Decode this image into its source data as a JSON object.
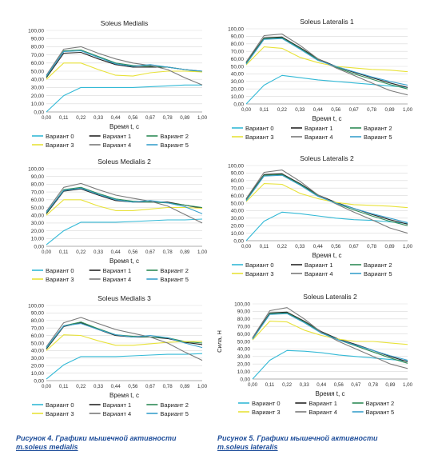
{
  "captions": {
    "left_line1": "Рисунок 4. Графики мышечной активности",
    "left_line2": "m.soleus medialis",
    "right_line1": "Рисунок 5. Графики мышечной активности",
    "right_line2": "m.soleus lateralis"
  },
  "colors": {
    "Вариант 0": "#33b9d6",
    "Вариант 1": "#262626",
    "Вариант 2": "#2e8b57",
    "Вариант 3": "#e8e23a",
    "Вариант 4": "#7a7a7a",
    "Вариант 5": "#3aa0cc"
  },
  "chart_data": [
    {
      "type": "line",
      "title": "Soleus Medialis",
      "xlabel": "Время t, с",
      "ylabel": "",
      "ylim": [
        0,
        100
      ],
      "yticks": [
        "0,00",
        "10,00",
        "20,00",
        "30,00",
        "40,00",
        "50,00",
        "60,00",
        "70,00",
        "80,00",
        "90,00",
        "100,00"
      ],
      "x": [
        "0,00",
        "0,11",
        "0,22",
        "0,33",
        "0,44",
        "0,56",
        "0,67",
        "0,78",
        "0,89",
        "1,00"
      ],
      "legend_position": "bottom",
      "legend_names": [
        "Вариант 0",
        "Вариант 1",
        "Вариант 2",
        "Вариант 3",
        "Вариант 4",
        "Вариант 5"
      ],
      "series": [
        {
          "name": "Вариант 0",
          "values": [
            0,
            20,
            30,
            30,
            30,
            30,
            31,
            32,
            33,
            33
          ]
        },
        {
          "name": "Вариант 1",
          "values": [
            42,
            72,
            73,
            65,
            58,
            55,
            55,
            55,
            52,
            50
          ]
        },
        {
          "name": "Вариант 2",
          "values": [
            43,
            75,
            76,
            68,
            60,
            57,
            56,
            55,
            52,
            49
          ]
        },
        {
          "name": "Вариант 3",
          "values": [
            40,
            60,
            60,
            52,
            45,
            44,
            48,
            50,
            50,
            49
          ]
        },
        {
          "name": "Вариант 4",
          "values": [
            45,
            77,
            80,
            72,
            65,
            60,
            57,
            52,
            42,
            33
          ]
        },
        {
          "name": "Вариант 5",
          "values": [
            44,
            74,
            75,
            67,
            59,
            56,
            58,
            55,
            52,
            50
          ]
        }
      ]
    },
    {
      "type": "line",
      "title": "Soleus Lateralis 1",
      "xlabel": "Время t, с",
      "ylabel": "",
      "ylim": [
        0,
        100
      ],
      "yticks": [
        "0,00",
        "10,00",
        "20,00",
        "30,00",
        "40,00",
        "50,00",
        "60,00",
        "70,00",
        "80,00",
        "90,00",
        "100,00"
      ],
      "x": [
        "0,00",
        "0,11",
        "0,22",
        "0,33",
        "0,44",
        "0,56",
        "0,67",
        "0,78",
        "0,89",
        "1,00"
      ],
      "legend_position": "bottom",
      "legend_names": [
        "Вариант 0",
        "Вариант 1",
        "Вариант 2",
        "Вариант 3",
        "Вариант 4",
        "Вариант 5"
      ],
      "series": [
        {
          "name": "Вариант 0",
          "values": [
            0,
            25,
            38,
            35,
            32,
            30,
            28,
            26,
            24,
            22
          ]
        },
        {
          "name": "Вариант 1",
          "values": [
            55,
            88,
            89,
            75,
            60,
            50,
            42,
            35,
            28,
            22
          ]
        },
        {
          "name": "Вариант 2",
          "values": [
            54,
            87,
            88,
            74,
            59,
            49,
            40,
            33,
            26,
            20
          ]
        },
        {
          "name": "Вариант 3",
          "values": [
            52,
            76,
            74,
            62,
            55,
            50,
            48,
            46,
            45,
            43
          ]
        },
        {
          "name": "Вариант 4",
          "values": [
            56,
            91,
            93,
            78,
            60,
            48,
            38,
            28,
            18,
            12
          ]
        },
        {
          "name": "Вариант 5",
          "values": [
            53,
            86,
            87,
            73,
            58,
            50,
            43,
            36,
            30,
            25
          ]
        }
      ]
    },
    {
      "type": "line",
      "title": "Soleus Medialis 2",
      "xlabel": "Время t, с",
      "ylabel": "",
      "ylim": [
        0,
        100
      ],
      "yticks": [
        "0,00",
        "10,00",
        "20,00",
        "30,00",
        "40,00",
        "50,00",
        "60,00",
        "70,00",
        "80,00",
        "90,00",
        "100,00"
      ],
      "x": [
        "0,00",
        "0,11",
        "0,22",
        "0,33",
        "0,44",
        "0,56",
        "0,67",
        "0,78",
        "0,89",
        "1,00"
      ],
      "legend_position": "bottom",
      "legend_names": [
        "Вариант 0",
        "Вариант 1",
        "Вариант 2",
        "Вариант 3",
        "Вариант 4",
        "Вариант 5"
      ],
      "series": [
        {
          "name": "Вариант 0",
          "values": [
            2,
            20,
            31,
            31,
            31,
            32,
            33,
            34,
            34,
            35
          ]
        },
        {
          "name": "Вариант 1",
          "values": [
            42,
            71,
            74,
            66,
            59,
            57,
            57,
            57,
            53,
            49
          ]
        },
        {
          "name": "Вариант 2",
          "values": [
            43,
            73,
            76,
            68,
            61,
            58,
            57,
            56,
            53,
            50
          ]
        },
        {
          "name": "Вариант 3",
          "values": [
            40,
            60,
            60,
            52,
            46,
            46,
            48,
            50,
            50,
            49
          ]
        },
        {
          "name": "Вариант 4",
          "values": [
            45,
            76,
            81,
            73,
            66,
            62,
            58,
            52,
            41,
            30
          ]
        },
        {
          "name": "Вариант 5",
          "values": [
            44,
            72,
            75,
            67,
            60,
            57,
            59,
            56,
            51,
            42
          ]
        }
      ]
    },
    {
      "type": "line",
      "title": "Soleus Lateralis 2",
      "xlabel": "Время t, с",
      "ylabel": "",
      "ylim": [
        0,
        100
      ],
      "yticks": [
        "0,00",
        "10,00",
        "20,00",
        "30,00",
        "40,00",
        "50,00",
        "60,00",
        "70,00",
        "80,00",
        "90,00",
        "100,00"
      ],
      "x": [
        "0,00",
        "0,11",
        "0,22",
        "0,33",
        "0,44",
        "0,56",
        "0,67",
        "0,78",
        "0,89",
        "1,00"
      ],
      "legend_position": "bottom",
      "legend_names": [
        "Вариант 0",
        "Вариант 1",
        "Вариант 2",
        "Вариант 3",
        "Вариант 4",
        "Вариант 5"
      ],
      "series": [
        {
          "name": "Вариант 0",
          "values": [
            0,
            26,
            38,
            36,
            33,
            30,
            28,
            27,
            25,
            23
          ]
        },
        {
          "name": "Вариант 1",
          "values": [
            55,
            88,
            89,
            76,
            61,
            51,
            43,
            35,
            28,
            22
          ]
        },
        {
          "name": "Вариант 2",
          "values": [
            54,
            87,
            88,
            75,
            60,
            50,
            41,
            33,
            26,
            20
          ]
        },
        {
          "name": "Вариант 3",
          "values": [
            52,
            76,
            75,
            63,
            56,
            51,
            48,
            47,
            46,
            44
          ]
        },
        {
          "name": "Вариант 4",
          "values": [
            56,
            91,
            94,
            79,
            61,
            49,
            38,
            28,
            17,
            10
          ]
        },
        {
          "name": "Вариант 5",
          "values": [
            53,
            86,
            87,
            74,
            59,
            50,
            43,
            36,
            30,
            24
          ]
        }
      ]
    },
    {
      "type": "line",
      "title": "Soleus Medialis 3",
      "xlabel": "Время t, с",
      "ylabel": "",
      "ylim": [
        0,
        100
      ],
      "yticks": [
        "0,00",
        "10,00",
        "20,00",
        "30,00",
        "40,00",
        "50,00",
        "60,00",
        "70,00",
        "80,00",
        "90,00",
        "100,00"
      ],
      "x": [
        "0,00",
        "0,11",
        "0,22",
        "0,33",
        "0,44",
        "0,56",
        "0,67",
        "0,78",
        "0,89",
        "1,00"
      ],
      "legend_position": "bottom",
      "legend_names": [
        "Вариант 0",
        "Вариант 1",
        "Вариант 2",
        "Вариант 3",
        "Вариант 4",
        "Вариант 5"
      ],
      "series": [
        {
          "name": "Вариант 0",
          "values": [
            2,
            21,
            32,
            32,
            32,
            33,
            34,
            35,
            35,
            36
          ]
        },
        {
          "name": "Вариант 1",
          "values": [
            42,
            72,
            77,
            68,
            60,
            58,
            58,
            56,
            51,
            48
          ]
        },
        {
          "name": "Вариант 2",
          "values": [
            43,
            73,
            78,
            69,
            61,
            59,
            58,
            57,
            52,
            50
          ]
        },
        {
          "name": "Вариант 3",
          "values": [
            40,
            61,
            60,
            53,
            47,
            47,
            49,
            51,
            52,
            52
          ]
        },
        {
          "name": "Вариант 4",
          "values": [
            45,
            77,
            84,
            76,
            68,
            63,
            58,
            50,
            38,
            27
          ]
        },
        {
          "name": "Вариант 5",
          "values": [
            44,
            73,
            76,
            68,
            61,
            58,
            60,
            57,
            50,
            44
          ]
        }
      ]
    },
    {
      "type": "line",
      "title": "Soleus Lateralis 2",
      "xlabel": "Время t, с",
      "ylabel": "Сила, Н",
      "ylim": [
        0,
        100
      ],
      "yticks": [
        "0,00",
        "10,00",
        "20,00",
        "30,00",
        "40,00",
        "50,00",
        "60,00",
        "70,00",
        "80,00",
        "90,00",
        "100,00"
      ],
      "x": [
        "0,00",
        "0,11",
        "0,22",
        "0,33",
        "0,44",
        "0,56",
        "0,67",
        "0,78",
        "0,89",
        "1,00"
      ],
      "legend_position": "bottom",
      "legend_names": [
        "Вариант 0",
        "Вариант 1",
        "Вариант 2",
        "Вариант 3",
        "Вариант 4",
        "Вариант 5"
      ],
      "series": [
        {
          "name": "Вариант 0",
          "values": [
            0,
            25,
            38,
            37,
            35,
            32,
            30,
            28,
            26,
            24
          ]
        },
        {
          "name": "Вариант 1",
          "values": [
            54,
            88,
            89,
            77,
            63,
            53,
            46,
            38,
            30,
            23
          ]
        },
        {
          "name": "Вариант 2",
          "values": [
            53,
            87,
            88,
            76,
            62,
            52,
            44,
            36,
            28,
            21
          ]
        },
        {
          "name": "Вариант 3",
          "values": [
            52,
            77,
            76,
            65,
            58,
            53,
            50,
            50,
            48,
            46
          ]
        },
        {
          "name": "Вариант 4",
          "values": [
            55,
            91,
            95,
            80,
            62,
            50,
            40,
            30,
            20,
            14
          ]
        },
        {
          "name": "Вариант 5",
          "values": [
            53,
            86,
            87,
            75,
            61,
            52,
            45,
            38,
            31,
            25
          ]
        }
      ]
    }
  ]
}
